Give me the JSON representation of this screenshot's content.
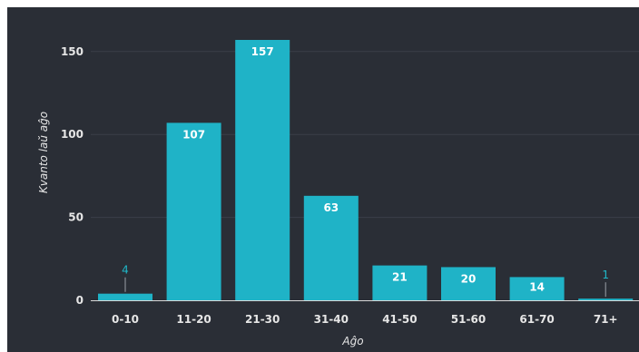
{
  "colors": {
    "background": "#2a2e36",
    "bar": "#1fb3c7",
    "grid": "#3a3f48",
    "axis_line": "#d9d9d9",
    "text": "#e6e6e6",
    "outside_label": "#1fb8c9"
  },
  "chart_data": {
    "type": "bar",
    "title": "",
    "xlabel": "Aĝo",
    "ylabel": "Kvanto laŭ aĝo",
    "categories": [
      "0-10",
      "11-20",
      "21-30",
      "31-40",
      "41-50",
      "51-60",
      "61-70",
      "71+"
    ],
    "values": [
      4,
      107,
      157,
      63,
      21,
      20,
      14,
      1
    ],
    "data_labels": [
      "4",
      "107",
      "157",
      "63",
      "21",
      "20",
      "14",
      "1"
    ],
    "yticks": [
      0,
      50,
      100,
      150
    ],
    "ytick_labels": [
      "0",
      "50",
      "100",
      "150"
    ],
    "ylim": [
      0,
      157
    ],
    "grid": true,
    "legend": "none"
  }
}
